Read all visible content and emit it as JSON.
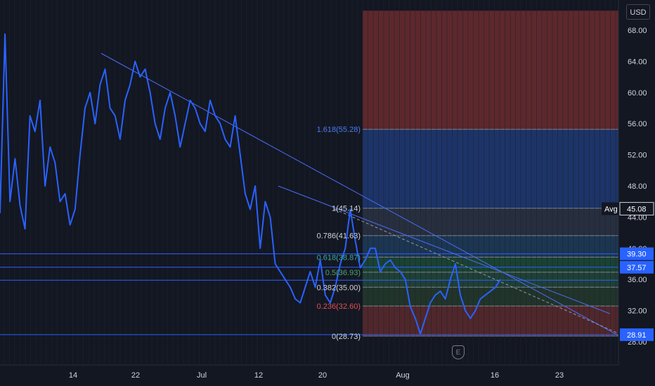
{
  "chart_data": {
    "type": "line",
    "currency": "USD",
    "title": "",
    "x_ticks": [
      "14",
      "22",
      "Jul",
      "12",
      "20",
      "Aug",
      "16",
      "23"
    ],
    "y_ticks": [
      "68.00",
      "64.00",
      "60.00",
      "56.00",
      "52.00",
      "48.00",
      "44.00",
      "40.00",
      "36.00",
      "32.00",
      "28.00"
    ],
    "ylim": [
      27.5,
      70.5
    ],
    "series": [
      {
        "color": "#2962ff",
        "values": [
          44.5,
          67.5,
          46,
          51.5,
          45.5,
          42.5,
          57,
          55,
          59,
          48,
          53,
          51,
          46,
          47,
          43,
          45,
          52,
          58,
          60,
          56,
          61,
          63,
          58,
          57,
          54,
          59,
          61,
          64,
          62,
          63,
          60,
          56,
          54,
          58,
          60,
          57,
          53,
          56,
          59,
          58,
          56,
          55,
          59,
          57,
          56,
          54,
          53,
          57,
          52,
          47,
          45,
          48,
          40,
          46,
          44,
          38,
          37,
          36,
          35,
          33.5,
          33,
          35,
          37,
          35,
          38.5,
          34,
          33,
          35,
          38,
          40,
          45,
          41,
          37.5,
          38.5,
          40,
          40,
          37,
          38,
          38.5,
          37.5,
          37,
          36,
          32.5,
          31,
          29,
          31,
          33,
          34,
          34.5,
          33.5,
          36,
          38,
          34,
          32,
          31,
          32,
          33.5,
          34,
          34.5,
          35,
          36
        ]
      }
    ],
    "fibonacci": {
      "levels": [
        {
          "label": "1.618(55.28)",
          "value": 55.28
        },
        {
          "label": "1(45.14)",
          "value": 45.14
        },
        {
          "label": "0.786(41.63)",
          "value": 41.63
        },
        {
          "label": "0.618(38.87)",
          "value": 38.87
        },
        {
          "label": "0.5(36.93)",
          "value": 36.93
        },
        {
          "label": "0.382(35.00)",
          "value": 35.0
        },
        {
          "label": "0.236(32.60)",
          "value": 32.6
        },
        {
          "label": "0(28.73)",
          "value": 28.73
        }
      ],
      "zones": [
        {
          "from": 55.28,
          "to": 70.5,
          "color": "#6b2b2e"
        },
        {
          "from": 45.14,
          "to": 55.28,
          "color": "#1e3a74"
        },
        {
          "from": 41.63,
          "to": 45.14,
          "color": "#2c3444"
        },
        {
          "from": 38.87,
          "to": 41.63,
          "color": "#1f3c5a"
        },
        {
          "from": 36.93,
          "to": 38.87,
          "color": "#1c4a36"
        },
        {
          "from": 35.0,
          "to": 36.93,
          "color": "#22483a"
        },
        {
          "from": 32.6,
          "to": 35.0,
          "color": "#24392c"
        },
        {
          "from": 28.73,
          "to": 32.6,
          "color": "#5c2a2d"
        }
      ]
    },
    "horizontal_lines": [
      39.3,
      37.57,
      35.9,
      28.91
    ],
    "price_tags": [
      {
        "label": "",
        "text": "39.30",
        "value": 39.3
      },
      {
        "label": "",
        "text": "37.57",
        "value": 37.57
      },
      {
        "label": "Avg",
        "text": "45.08",
        "value": 45.08
      },
      {
        "label": "",
        "text": "28.91",
        "value": 28.91
      }
    ],
    "event_marker": "E"
  }
}
